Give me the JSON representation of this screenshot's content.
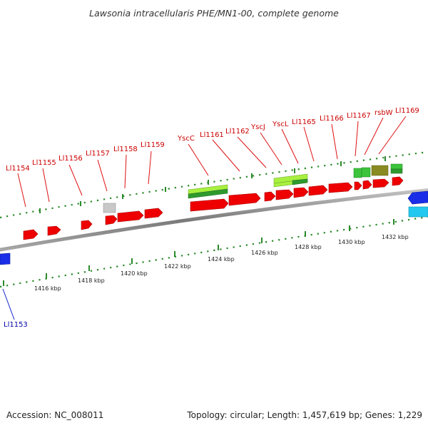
{
  "title": "Lawsonia intracellularis PHE/MN1-00, complete genome",
  "footer": {
    "accession": "Accession: NC_008011",
    "topology": "Topology: circular; Length: 1,457,619 bp; Genes: 1,229"
  },
  "colors": {
    "cds": "#ee0000",
    "label_forward": "#cc0000",
    "label_reverse": "#0000aa",
    "tick": "#2a8a2a",
    "backbone": "#8c8c8c",
    "rna_light": "#a8f040",
    "rna_dark": "#2e9a2e",
    "pseudo": "#c8c8c8",
    "other_blue": "#1a2ee8",
    "other_cyan": "#22c8f0",
    "olive": "#8a8a22"
  },
  "gene_labels": [
    {
      "text": "Ll1154"
    },
    {
      "text": "Ll1155"
    },
    {
      "text": "Ll1156"
    },
    {
      "text": "Ll1157"
    },
    {
      "text": "Ll1158"
    },
    {
      "text": "Ll1159"
    },
    {
      "text": "YscC"
    },
    {
      "text": "Ll1161"
    },
    {
      "text": "Ll1162"
    },
    {
      "text": "YscJ"
    },
    {
      "text": "YscL"
    },
    {
      "text": "Ll1165"
    },
    {
      "text": "Ll1166"
    },
    {
      "text": "Ll1167"
    },
    {
      "text": "rsbW"
    },
    {
      "text": "Ll1169"
    },
    {
      "text": "Ll1153"
    }
  ],
  "ticks": [
    {
      "label": "1416 kbp"
    },
    {
      "label": "1418 kbp"
    },
    {
      "label": "1420 kbp"
    },
    {
      "label": "1422 kbp"
    },
    {
      "label": "1424 kbp"
    },
    {
      "label": "1426 kbp"
    },
    {
      "label": "1428 kbp"
    },
    {
      "label": "1430 kbp"
    },
    {
      "label": "1432 kbp"
    }
  ]
}
